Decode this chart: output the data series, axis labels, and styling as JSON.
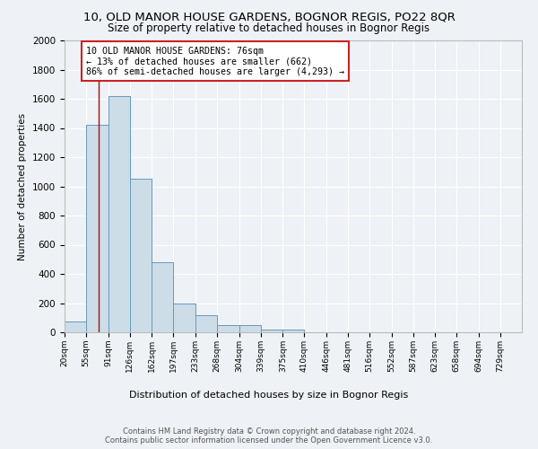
{
  "title1": "10, OLD MANOR HOUSE GARDENS, BOGNOR REGIS, PO22 8QR",
  "title2": "Size of property relative to detached houses in Bognor Regis",
  "xlabel": "Distribution of detached houses by size in Bognor Regis",
  "ylabel": "Number of detached properties",
  "bin_labels": [
    "20sqm",
    "55sqm",
    "91sqm",
    "126sqm",
    "162sqm",
    "197sqm",
    "233sqm",
    "268sqm",
    "304sqm",
    "339sqm",
    "375sqm",
    "410sqm",
    "446sqm",
    "481sqm",
    "516sqm",
    "552sqm",
    "587sqm",
    "623sqm",
    "658sqm",
    "694sqm",
    "729sqm"
  ],
  "bin_edges": [
    20,
    55,
    91,
    126,
    162,
    197,
    233,
    268,
    304,
    339,
    375,
    410,
    446,
    481,
    516,
    552,
    587,
    623,
    658,
    694,
    729
  ],
  "bar_values": [
    75,
    1420,
    1620,
    1050,
    480,
    200,
    120,
    50,
    50,
    20,
    20,
    0,
    0,
    0,
    0,
    0,
    0,
    0,
    0,
    0
  ],
  "bar_color": "#ccdde8",
  "bar_edge_color": "#6699bb",
  "red_line_x": 76,
  "annotation_line1": "10 OLD MANOR HOUSE GARDENS: 76sqm",
  "annotation_line2": "← 13% of detached houses are smaller (662)",
  "annotation_line3": "86% of semi-detached houses are larger (4,293) →",
  "annotation_box_color": "#ffffff",
  "annotation_box_edge_color": "#cc2222",
  "ylim": [
    0,
    2000
  ],
  "yticks": [
    0,
    200,
    400,
    600,
    800,
    1000,
    1200,
    1400,
    1600,
    1800,
    2000
  ],
  "footer1": "Contains HM Land Registry data © Crown copyright and database right 2024.",
  "footer2": "Contains public sector information licensed under the Open Government Licence v3.0.",
  "bg_color": "#eef2f6",
  "grid_color": "#ffffff",
  "title1_fontsize": 9.5,
  "title2_fontsize": 8.5
}
